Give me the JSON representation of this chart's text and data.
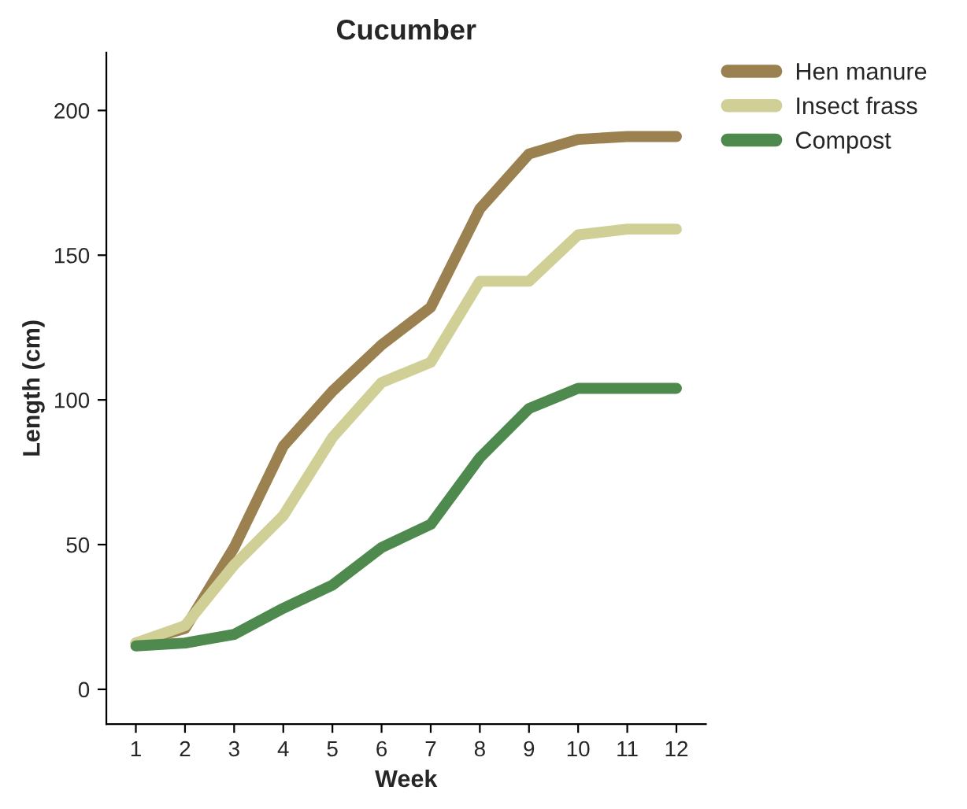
{
  "chart_data": {
    "type": "line",
    "title": "Cucumber",
    "xlabel": "Week",
    "ylabel": "Length (cm)",
    "x": [
      1,
      2,
      3,
      4,
      5,
      6,
      7,
      8,
      9,
      10,
      11,
      12
    ],
    "series": [
      {
        "name": "Hen manure",
        "color": "#9c8150",
        "values": [
          16,
          21,
          49,
          84,
          103,
          119,
          132,
          166,
          185,
          190,
          191,
          191
        ]
      },
      {
        "name": "Insect frass",
        "color": "#cfcf96",
        "values": [
          16,
          22,
          43,
          60,
          87,
          106,
          113,
          141,
          141,
          157,
          159,
          159
        ]
      },
      {
        "name": "Compost",
        "color": "#4e8a4e",
        "values": [
          15,
          16,
          19,
          28,
          36,
          49,
          57,
          80,
          97,
          104,
          104,
          104
        ]
      }
    ],
    "xlim": [
      0.4,
      12.6
    ],
    "xticks": [
      1,
      2,
      3,
      4,
      5,
      6,
      7,
      8,
      9,
      10,
      11,
      12
    ],
    "ylim": [
      -12,
      220
    ],
    "yticks": [
      0,
      50,
      100,
      150,
      200
    ],
    "grid": false,
    "legend": "top right",
    "marker": "none",
    "line_style": "solid"
  }
}
